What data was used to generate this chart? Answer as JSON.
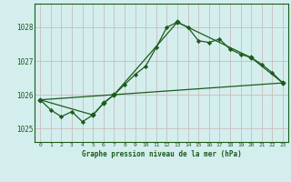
{
  "title": "Graphe pression niveau de la mer (hPa)",
  "bg_color": "#d4eeee",
  "grid_color": "#ccbbbb",
  "line_color": "#1a5c1a",
  "xlim": [
    -0.5,
    23.5
  ],
  "ylim": [
    1024.6,
    1028.7
  ],
  "yticks": [
    1025,
    1026,
    1027,
    1028
  ],
  "xticks": [
    0,
    1,
    2,
    3,
    4,
    5,
    6,
    7,
    8,
    9,
    10,
    11,
    12,
    13,
    14,
    15,
    16,
    17,
    18,
    19,
    20,
    21,
    22,
    23
  ],
  "series1_x": [
    0,
    1,
    2,
    3,
    4,
    5,
    6,
    7,
    8,
    9,
    10,
    11,
    12,
    13,
    14,
    15,
    16,
    17,
    18,
    19,
    20,
    21,
    22,
    23
  ],
  "series1_y": [
    1025.85,
    1025.55,
    1025.35,
    1025.5,
    1025.2,
    1025.4,
    1025.75,
    1026.0,
    1026.3,
    1026.6,
    1026.85,
    1027.4,
    1028.0,
    1028.15,
    1028.0,
    1027.6,
    1027.55,
    1027.65,
    1027.35,
    1027.2,
    1027.1,
    1026.9,
    1026.65,
    1026.35
  ],
  "series2_x": [
    0,
    5,
    6,
    7,
    13,
    20,
    23
  ],
  "series2_y": [
    1025.85,
    1025.4,
    1025.75,
    1026.0,
    1028.15,
    1027.1,
    1026.35
  ],
  "series3_x": [
    0,
    23
  ],
  "series3_y": [
    1025.85,
    1026.35
  ]
}
